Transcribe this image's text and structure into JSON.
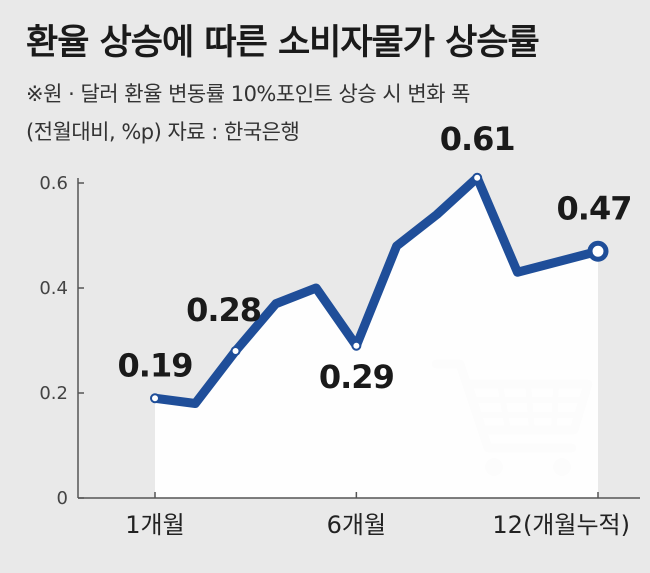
{
  "header": {
    "title": "환율 상승에 따른 소비자물가 상승률",
    "subtitle": "※원 · 달러 환율 변동률 10%포인트 상승 시 변화 폭",
    "note": "(전월대비, %p)   자료 : 한국은행"
  },
  "colors": {
    "background": "#e9e9e9",
    "area_fill": "#ffffff",
    "line": "#1f4e99",
    "icon": "#c8c8c8",
    "axis": "#555555"
  },
  "chart_data": {
    "type": "area",
    "title": "환율 상승에 따른 소비자물가 상승률",
    "x": [
      1,
      2,
      3,
      4,
      5,
      6,
      7,
      8,
      9,
      10,
      11,
      12
    ],
    "series": [
      {
        "values": [
          0.19,
          0.18,
          0.28,
          0.37,
          0.4,
          0.29,
          0.48,
          0.54,
          0.61,
          0.43,
          0.45,
          0.47
        ]
      }
    ],
    "ylim": [
      0,
      0.6
    ],
    "xlim": [
      1,
      12
    ],
    "y_ticks": [
      {
        "value": 0,
        "label": "0"
      },
      {
        "value": 0.2,
        "label": "0.2"
      },
      {
        "value": 0.4,
        "label": "0.4"
      },
      {
        "value": 0.6,
        "label": "0.6"
      }
    ],
    "x_ticks": [
      {
        "value": 1,
        "label": "1개월"
      },
      {
        "value": 6,
        "label": "6개월"
      },
      {
        "value": 12,
        "label": "12(개월누적)"
      }
    ],
    "labeled_points": [
      {
        "x": 1,
        "label": "0.19"
      },
      {
        "x": 3,
        "label": "0.28"
      },
      {
        "x": 6,
        "label": "0.29"
      },
      {
        "x": 9,
        "label": "0.61"
      },
      {
        "x": 12,
        "label": "0.47"
      }
    ],
    "grid": false
  },
  "decoration": {
    "icon": "shopping-cart-icon"
  }
}
